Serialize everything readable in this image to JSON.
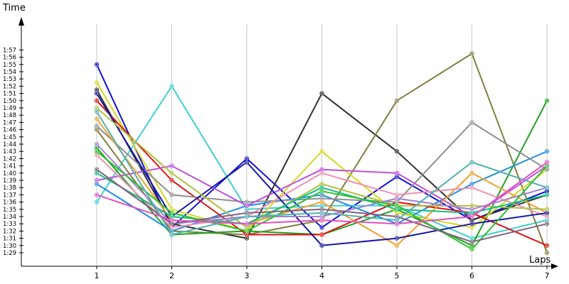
{
  "chart_data": {
    "type": "line",
    "title": "",
    "xlabel": "Laps",
    "ylabel": "Time",
    "x": [
      1,
      2,
      3,
      4,
      5,
      6,
      7
    ],
    "x_tick_labels": [
      "1",
      "2",
      "3",
      "4",
      "5",
      "6",
      "7"
    ],
    "y_tick_labels": [
      "1:29",
      "1:30",
      "1:31",
      "1:32",
      "1:33",
      "1:34",
      "1:35",
      "1:36",
      "1:37",
      "1:38",
      "1:39",
      "1:40",
      "1:41",
      "1:42",
      "1:43",
      "1:44",
      "1:45",
      "1:46",
      "1:47",
      "1:48",
      "1:49",
      "1:50",
      "1:51",
      "1:52",
      "1:53",
      "1:54",
      "1:55",
      "1:56",
      "1:57"
    ],
    "ylim_seconds": [
      89,
      117
    ],
    "grid": {
      "vertical": true,
      "horizontal": false
    },
    "legend": "none",
    "series": [
      {
        "color": "#1010d8",
        "values": [
          "1:55.0",
          "1:32.5",
          "1:42.0",
          "1:32.5",
          "1:39.5",
          "1:33.5",
          "1:37.5"
        ]
      },
      {
        "color": "#40d0d0",
        "values": [
          "1:36.0",
          "1:52.0",
          "1:35.0",
          "1:35.5",
          "1:35.5",
          "1:31.0",
          "1:33.5"
        ]
      },
      {
        "color": "#303030",
        "values": [
          "1:51.5",
          "1:33.0",
          "1:31.0",
          "1:51.0",
          "1:43.0",
          "1:33.5",
          "1:37.0"
        ]
      },
      {
        "color": "#808040",
        "values": [
          "1:46.0",
          "1:32.0",
          "1:31.5",
          "1:33.5",
          "1:50.0",
          "1:56.5",
          "1:29.0"
        ]
      },
      {
        "color": "#20a020",
        "values": [
          "1:43.5",
          "1:31.5",
          "1:32.0",
          "1:31.5",
          "1:35.0",
          "1:30.0",
          "1:50.0"
        ]
      },
      {
        "color": "#2090e0",
        "values": [
          "1:38.5",
          "1:32.0",
          "1:35.5",
          "1:37.0",
          "1:33.0",
          "1:38.5",
          "1:43.0"
        ]
      },
      {
        "color": "#d8d820",
        "values": [
          "1:52.5",
          "1:35.0",
          "1:32.0",
          "1:43.0",
          "1:34.5",
          "1:32.5",
          "1:40.5"
        ]
      },
      {
        "color": "#e01010",
        "values": [
          "1:50.0",
          "1:39.0",
          "1:31.5",
          "1:31.5",
          "1:36.0",
          "1:34.5",
          "1:30.0"
        ]
      },
      {
        "color": "#909090",
        "values": [
          "1:46.5",
          "1:37.0",
          "1:36.0",
          "1:36.5",
          "1:36.0",
          "1:47.0",
          "1:40.5"
        ]
      },
      {
        "color": "#c050e0",
        "values": [
          "1:39.0",
          "1:41.0",
          "1:35.5",
          "1:40.5",
          "1:40.0",
          "1:34.0",
          "1:41.0"
        ]
      },
      {
        "color": "#f0a030",
        "values": [
          "1:47.5",
          "1:33.5",
          "1:33.0",
          "1:36.0",
          "1:30.0",
          "1:40.0",
          "1:34.5"
        ]
      },
      {
        "color": "#f090b0",
        "values": [
          "1:42.5",
          "1:32.5",
          "1:34.0",
          "1:40.0",
          "1:37.0",
          "1:38.0",
          "1:34.0"
        ]
      },
      {
        "color": "#1818a0",
        "values": [
          "1:51.0",
          "1:34.0",
          "1:41.5",
          "1:30.0",
          "1:31.0",
          "1:33.0",
          "1:34.5"
        ]
      },
      {
        "color": "#b0c040",
        "values": [
          "1:49.0",
          "1:40.0",
          "1:32.5",
          "1:38.5",
          "1:35.5",
          "1:35.5",
          "1:35.0"
        ]
      },
      {
        "color": "#10c080",
        "values": [
          "1:40.0",
          "1:34.0",
          "1:33.0",
          "1:38.0",
          "1:35.0",
          "1:34.5",
          "1:37.0"
        ]
      },
      {
        "color": "#a080d0",
        "values": [
          "1:44.0",
          "1:33.0",
          "1:34.0",
          "1:34.0",
          "1:36.5",
          "1:35.0",
          "1:38.0"
        ]
      },
      {
        "color": "#30c030",
        "values": [
          "1:43.0",
          "1:34.5",
          "1:32.0",
          "1:37.5",
          "1:35.5",
          "1:29.5",
          "1:41.0"
        ]
      },
      {
        "color": "#806080",
        "values": [
          "1:40.5",
          "1:33.0",
          "1:34.5",
          "1:35.0",
          "1:34.0",
          "1:30.5",
          "1:33.0"
        ]
      },
      {
        "color": "#50b0b0",
        "values": [
          "1:48.5",
          "1:31.5",
          "1:34.0",
          "1:34.5",
          "1:33.5",
          "1:41.5",
          "1:38.0"
        ]
      },
      {
        "color": "#e050c0",
        "values": [
          "1:37.0",
          "1:33.5",
          "1:33.0",
          "1:33.5",
          "1:33.0",
          "1:34.0",
          "1:41.5"
        ]
      }
    ]
  }
}
